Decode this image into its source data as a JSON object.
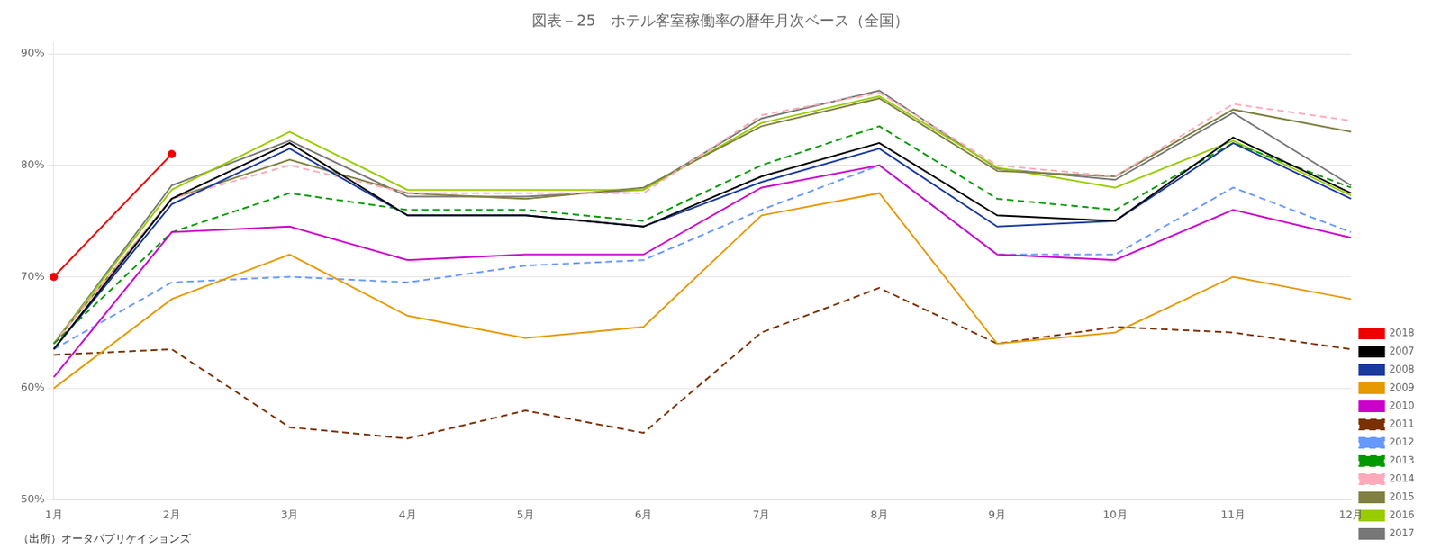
{
  "chart_data": {
    "type": "line",
    "title": "図表－25　ホテル客室稼働率の暦年月次ベース（全国）",
    "annotations": [
      "（出所）オータパブリケイションズ"
    ],
    "categories": [
      "1月",
      "2月",
      "3月",
      "4月",
      "5月",
      "6月",
      "7月",
      "8月",
      "9月",
      "10月",
      "11月",
      "12月"
    ],
    "series": [
      {
        "name": "2007",
        "color": "#000000",
        "line_style": "solid",
        "values": [
          0.635,
          0.77,
          0.82,
          0.755,
          0.755,
          0.745,
          0.79,
          0.82,
          0.755,
          0.75,
          0.825,
          0.775
        ]
      },
      {
        "name": "2008",
        "color": "#1a3a9e",
        "line_style": "solid",
        "values": [
          0.635,
          0.765,
          0.815,
          0.755,
          0.755,
          0.745,
          0.785,
          0.815,
          0.745,
          0.75,
          0.82,
          0.77
        ]
      },
      {
        "name": "2009",
        "color": "#e69900",
        "line_style": "solid",
        "values": [
          0.6,
          0.68,
          0.72,
          0.665,
          0.645,
          0.655,
          0.755,
          0.775,
          0.64,
          0.65,
          0.7,
          0.68
        ]
      },
      {
        "name": "2010",
        "color": "#cc00cc",
        "line_style": "solid",
        "values": [
          0.61,
          0.74,
          0.745,
          0.715,
          0.72,
          0.72,
          0.78,
          0.8,
          0.72,
          0.715,
          0.76,
          0.735
        ]
      },
      {
        "name": "2011",
        "color": "#7b3000",
        "line_style": "dashed",
        "values": [
          0.63,
          0.635,
          0.565,
          0.555,
          0.58,
          0.56,
          0.65,
          0.69,
          0.64,
          0.655,
          0.65,
          0.635
        ]
      },
      {
        "name": "2012",
        "color": "#6699ff",
        "line_style": "dashed",
        "values": [
          0.635,
          0.695,
          0.7,
          0.695,
          0.71,
          0.715,
          0.76,
          0.8,
          0.72,
          0.72,
          0.78,
          0.74
        ]
      },
      {
        "name": "2013",
        "color": "#009900",
        "line_style": "dashed",
        "values": [
          0.64,
          0.74,
          0.775,
          0.76,
          0.76,
          0.75,
          0.8,
          0.835,
          0.77,
          0.76,
          0.82,
          0.78
        ]
      },
      {
        "name": "2014",
        "color": "#ffaabb",
        "line_style": "dashed",
        "values": [
          0.64,
          0.77,
          0.8,
          0.775,
          0.775,
          0.775,
          0.845,
          0.865,
          0.8,
          0.79,
          0.855,
          0.84
        ]
      },
      {
        "name": "2015",
        "color": "#808040",
        "line_style": "solid",
        "values": [
          0.64,
          0.77,
          0.805,
          0.775,
          0.77,
          0.78,
          0.835,
          0.86,
          0.795,
          0.79,
          0.85,
          0.83
        ]
      },
      {
        "name": "2016",
        "color": "#99cc00",
        "line_style": "solid",
        "values": [
          0.64,
          0.778,
          0.83,
          0.778,
          0.778,
          0.778,
          0.838,
          0.862,
          0.798,
          0.78,
          0.822,
          0.773
        ]
      },
      {
        "name": "2017",
        "color": "#777777",
        "line_style": "solid",
        "values": [
          0.64,
          0.782,
          0.822,
          0.772,
          0.772,
          0.778,
          0.842,
          0.867,
          0.797,
          0.787,
          0.847,
          0.782
        ]
      },
      {
        "name": "2018",
        "color": "#ee0000",
        "line_style": "solid",
        "marker": "circle",
        "values": [
          0.7,
          0.81,
          null,
          null,
          null,
          null,
          null,
          null,
          null,
          null,
          null,
          null
        ]
      }
    ],
    "ylim": [
      0.5,
      0.91
    ],
    "yticks": [
      {
        "value": 0.5,
        "label": "50%"
      },
      {
        "value": 0.6,
        "label": "60%"
      },
      {
        "value": 0.7,
        "label": "70%"
      },
      {
        "value": 0.8,
        "label": "80%"
      },
      {
        "value": 0.9,
        "label": "90%"
      }
    ],
    "grid": "y",
    "legend": "lower right"
  }
}
